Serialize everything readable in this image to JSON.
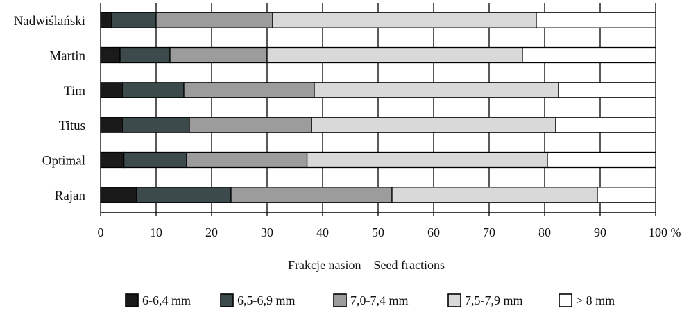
{
  "chart_data": {
    "type": "bar",
    "orientation": "horizontal",
    "stacked": true,
    "categories": [
      "Nadwiślański",
      "Martin",
      "Tim",
      "Titus",
      "Optimal",
      "Rajan"
    ],
    "series": [
      {
        "name": "6-6,4 mm",
        "values": [
          2.0,
          3.5,
          4.0,
          4.0,
          4.2,
          6.5
        ],
        "color": "#1a1a1a"
      },
      {
        "name": "6,5-6,9 mm",
        "values": [
          8.0,
          9.0,
          11.0,
          12.0,
          11.3,
          17.0
        ],
        "color": "#3c4a4c"
      },
      {
        "name": "7,0-7,4 mm",
        "values": [
          21.0,
          17.5,
          23.5,
          22.0,
          21.7,
          29.0
        ],
        "color": "#9c9c9c"
      },
      {
        "name": "7,5-7,9 mm",
        "values": [
          47.5,
          46.0,
          44.0,
          44.0,
          43.3,
          37.0
        ],
        "color": "#d9d9d9"
      },
      {
        "name": "> 8 mm",
        "values": [
          21.5,
          24.0,
          17.5,
          18.0,
          19.5,
          10.5
        ],
        "color": "#ffffff"
      }
    ],
    "x_ticks": [
      "0",
      "10",
      "20",
      "30",
      "40",
      "50",
      "60",
      "70",
      "80",
      "90",
      "100 %"
    ],
    "xlim": [
      0,
      100
    ],
    "xlabel": "Frakcje nasion – Seed fractions",
    "ylabel": "",
    "title": "",
    "grid": "vertical",
    "legend_position": "bottom"
  }
}
